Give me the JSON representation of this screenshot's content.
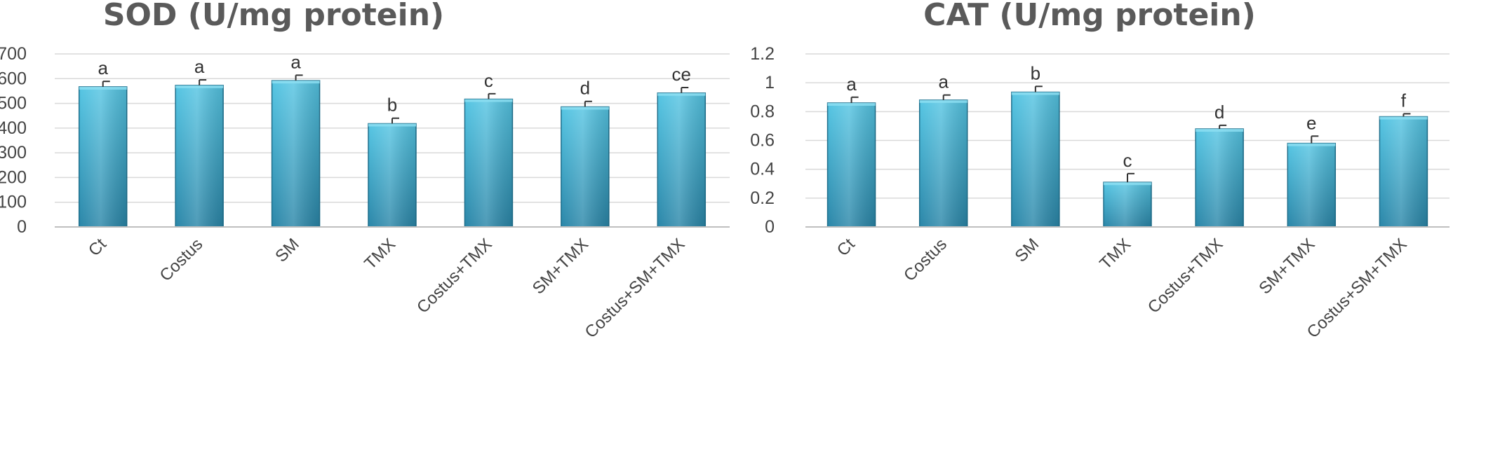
{
  "chart_data": [
    {
      "type": "bar",
      "title": "SOD (U/mg protein)",
      "categories": [
        "Ct",
        "Costus",
        "SM",
        "TMX",
        "Costus+TMX",
        "SM+TMX",
        "Costus+SM+TMX"
      ],
      "values": [
        567,
        573,
        592,
        418,
        517,
        486,
        542
      ],
      "errors": [
        22,
        22,
        22,
        22,
        22,
        22,
        22
      ],
      "labels": [
        "a",
        "a",
        "a",
        "b",
        "c",
        "d",
        "ce"
      ],
      "ylim": [
        0,
        700
      ],
      "yticks": [
        "0",
        "100",
        "200",
        "300",
        "400",
        "500",
        "600",
        "700"
      ],
      "xlabel": "",
      "ylabel": "",
      "grid": true
    },
    {
      "type": "bar",
      "title": "CAT (U/mg protein)",
      "categories": [
        "Ct",
        "Costus",
        "SM",
        "TMX",
        "Costus+TMX",
        "SM+TMX",
        "Costus+SM+TMX"
      ],
      "values": [
        0.86,
        0.88,
        0.935,
        0.31,
        0.68,
        0.58,
        0.765
      ],
      "errors": [
        0.04,
        0.035,
        0.04,
        0.06,
        0.025,
        0.05,
        0.02
      ],
      "labels": [
        "a",
        "a",
        "b",
        "c",
        "d",
        "e",
        "f"
      ],
      "ylim": [
        0,
        1.2
      ],
      "yticks": [
        "0",
        "0.2",
        "0.4",
        "0.6",
        "0.8",
        "1",
        "1.2"
      ],
      "xlabel": "",
      "ylabel": "",
      "grid": true
    }
  ],
  "colors": {
    "bar_top": "#55c5e3",
    "bar_bottom": "#2a86a8",
    "bar_edge": "#1f6f8c",
    "grid": "#d9d9d9",
    "error_bar": "#333333"
  }
}
